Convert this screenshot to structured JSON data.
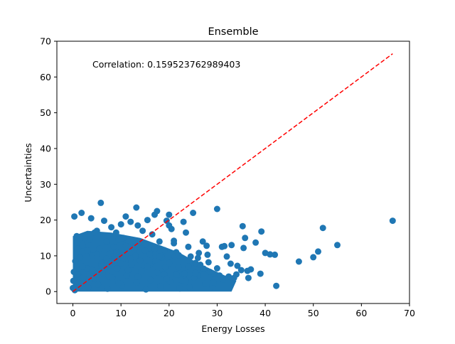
{
  "chart_data": {
    "type": "scatter",
    "title": "Ensemble",
    "xlabel": "Energy Losses",
    "ylabel": "Uncertainties",
    "xlim": [
      -3.33,
      70
    ],
    "ylim": [
      -3.33,
      70
    ],
    "xticks": [
      0,
      10,
      20,
      30,
      40,
      50,
      60,
      70
    ],
    "yticks": [
      0,
      10,
      20,
      30,
      40,
      50,
      60,
      70
    ],
    "annotation": "Correlation: 0.159523762989403",
    "colors": {
      "points": "#1f77b4",
      "reference_line": "#ff0000"
    },
    "reference_line": {
      "style": "dashed",
      "x": [
        0,
        66.5
      ],
      "y": [
        0,
        66.5
      ]
    },
    "grid": false,
    "series": [
      {
        "points": [
          [
            66.5,
            19.8
          ],
          [
            55,
            13
          ],
          [
            52,
            17.8
          ],
          [
            51,
            11.2
          ],
          [
            50,
            9.6
          ],
          [
            47,
            8.4
          ],
          [
            42.3,
            1.6
          ],
          [
            42,
            10.3
          ],
          [
            41,
            10.4
          ],
          [
            40,
            10.8
          ],
          [
            39.2,
            16.8
          ],
          [
            39,
            5
          ],
          [
            38,
            13.7
          ],
          [
            37,
            6.2
          ],
          [
            36.5,
            3.8
          ],
          [
            36.3,
            5.8
          ],
          [
            35.8,
            15
          ],
          [
            35.5,
            12.2
          ],
          [
            35.3,
            18.3
          ],
          [
            35,
            6
          ],
          [
            34,
            4.8
          ],
          [
            33.5,
            3.8
          ],
          [
            33,
            13
          ],
          [
            32.8,
            7.8
          ],
          [
            32,
            9.8
          ],
          [
            31.5,
            12.7
          ],
          [
            31,
            12.5
          ],
          [
            30.5,
            4.5
          ],
          [
            30,
            23.1
          ],
          [
            30,
            6.5
          ],
          [
            29.5,
            3.5
          ],
          [
            29,
            1.5
          ],
          [
            28.5,
            5.5
          ],
          [
            28,
            10.3
          ],
          [
            27.8,
            12.8
          ],
          [
            27.5,
            2.2
          ],
          [
            27,
            14
          ],
          [
            26.5,
            7.5
          ],
          [
            26,
            4.5
          ],
          [
            25.5,
            8
          ],
          [
            25,
            22
          ],
          [
            24.5,
            9.8
          ],
          [
            24,
            12.5
          ],
          [
            23.5,
            16.5
          ],
          [
            23,
            19.5
          ],
          [
            22.5,
            3.2
          ],
          [
            22,
            6.8
          ],
          [
            21.5,
            11
          ],
          [
            21,
            13.5
          ],
          [
            20.5,
            17.5
          ],
          [
            20,
            21.5
          ],
          [
            20,
            18.5
          ],
          [
            19.5,
            19.8
          ],
          [
            19,
            4.8
          ],
          [
            18.5,
            9.5
          ],
          [
            18,
            14
          ],
          [
            17.5,
            22.5
          ],
          [
            17,
            21.5
          ],
          [
            16.5,
            16
          ],
          [
            16,
            7.5
          ],
          [
            15.5,
            20
          ],
          [
            15,
            11.5
          ],
          [
            14.5,
            17
          ],
          [
            14,
            13.8
          ],
          [
            13.5,
            18.5
          ],
          [
            13.2,
            23.5
          ],
          [
            12.8,
            12
          ],
          [
            12,
            19.5
          ],
          [
            11.5,
            9
          ],
          [
            11,
            21
          ],
          [
            10.5,
            15
          ],
          [
            10,
            18.8
          ],
          [
            9.5,
            14.5
          ],
          [
            9,
            16.5
          ],
          [
            8.5,
            12.5
          ],
          [
            8,
            18
          ],
          [
            7.5,
            10.5
          ],
          [
            7,
            14
          ],
          [
            6.5,
            19.8
          ],
          [
            6,
            8
          ],
          [
            5.8,
            24.8
          ],
          [
            5.5,
            12
          ],
          [
            5,
            17
          ],
          [
            4.5,
            16.5
          ],
          [
            4,
            10
          ],
          [
            3.8,
            20.5
          ],
          [
            3.5,
            14.5
          ],
          [
            3,
            6.5
          ],
          [
            2.5,
            15
          ],
          [
            2,
            13
          ],
          [
            1.8,
            22
          ],
          [
            1.5,
            9.5
          ],
          [
            1,
            12
          ],
          [
            0.8,
            15.5
          ],
          [
            0.5,
            8.5
          ],
          [
            0.3,
            21
          ],
          [
            0.2,
            5.5
          ],
          [
            0.1,
            3
          ],
          [
            0,
            1
          ],
          [
            0.4,
            0.4
          ],
          [
            1.2,
            2.5
          ],
          [
            2.2,
            4
          ],
          [
            3.2,
            1.2
          ],
          [
            4.2,
            3.6
          ],
          [
            5.2,
            2
          ],
          [
            6.2,
            5.2
          ],
          [
            7.2,
            0.8
          ],
          [
            8.2,
            3.8
          ],
          [
            9.2,
            6.5
          ],
          [
            10.2,
            1.8
          ],
          [
            11.2,
            4.5
          ],
          [
            12.2,
            7.5
          ],
          [
            13.2,
            2.5
          ],
          [
            14.2,
            5.8
          ],
          [
            15.2,
            0.6
          ],
          [
            16.2,
            3.2
          ],
          [
            17.2,
            8.8
          ],
          [
            18.2,
            1.5
          ],
          [
            19.2,
            6.8
          ],
          [
            20.2,
            2.8
          ],
          [
            21.2,
            9.8
          ],
          [
            22.2,
            0.9
          ],
          [
            23.2,
            5
          ],
          [
            24.2,
            1.3
          ],
          [
            25.2,
            3.8
          ],
          [
            26.2,
            10.8
          ],
          [
            27.2,
            6.4
          ],
          [
            28.2,
            8.2
          ],
          [
            29.2,
            2.6
          ],
          [
            31.2,
            3.4
          ],
          [
            32.4,
            4.2
          ],
          [
            34.2,
            7.2
          ],
          [
            3,
            11.5
          ],
          [
            5,
            10.5
          ],
          [
            7,
            9.2
          ],
          [
            9,
            11
          ],
          [
            11,
            12.8
          ],
          [
            13,
            10
          ],
          [
            15,
            13.2
          ],
          [
            17,
            12
          ],
          [
            19,
            11.6
          ],
          [
            21,
            14.2
          ],
          [
            2,
            7
          ],
          [
            4,
            6
          ],
          [
            6,
            7.4
          ],
          [
            8,
            8.4
          ],
          [
            10,
            7.8
          ],
          [
            12,
            9.2
          ],
          [
            14,
            8.6
          ],
          [
            16,
            10.4
          ],
          [
            18,
            9.8
          ],
          [
            20,
            8
          ],
          [
            22,
            10.2
          ],
          [
            24,
            7
          ],
          [
            26,
            9.4
          ],
          [
            1,
            4.8
          ],
          [
            3.5,
            3
          ],
          [
            5.5,
            5.6
          ],
          [
            7.5,
            4.2
          ],
          [
            9.5,
            2.4
          ],
          [
            11.5,
            6
          ],
          [
            13.5,
            4.2
          ],
          [
            15.5,
            7
          ],
          [
            17.5,
            5.4
          ],
          [
            19.5,
            3.6
          ],
          [
            21.5,
            4.8
          ],
          [
            23.5,
            3
          ],
          [
            25.5,
            5.2
          ]
        ]
      }
    ]
  }
}
